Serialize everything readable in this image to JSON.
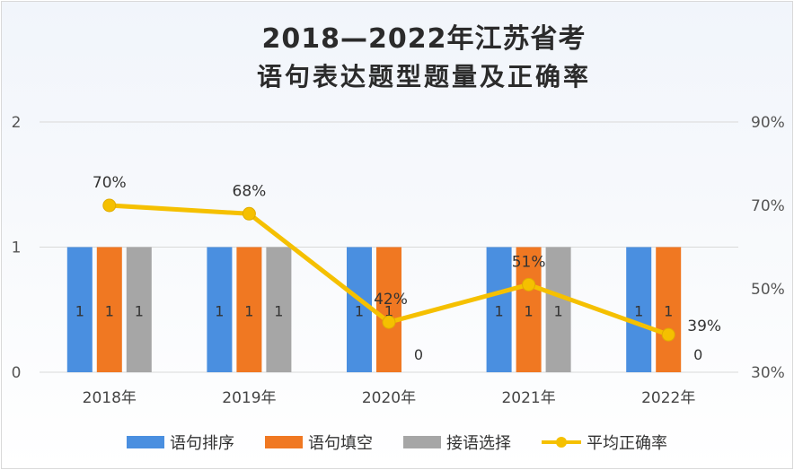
{
  "title_line1": "2018—2022年江苏省考",
  "title_line2": "语句表达题型题量及正确率",
  "chart_data": {
    "type": "bar",
    "categories": [
      "2018年",
      "2019年",
      "2020年",
      "2021年",
      "2022年"
    ],
    "series": [
      {
        "name": "语句排序",
        "values": [
          1,
          1,
          1,
          1,
          1
        ],
        "color": "#4a8fe0"
      },
      {
        "name": "语句填空",
        "values": [
          1,
          1,
          1,
          1,
          1
        ],
        "color": "#f07822"
      },
      {
        "name": "接语选择",
        "values": [
          1,
          1,
          0,
          1,
          0
        ],
        "color": "#a6a6a6"
      }
    ],
    "data_labels": [
      [
        "1",
        "1",
        "1",
        "1",
        "1"
      ],
      [
        "1",
        "1",
        "1",
        "1",
        "1"
      ],
      [
        "1",
        "1",
        "0",
        "1",
        "0"
      ]
    ],
    "line_series": {
      "name": "平均正确率",
      "values": [
        0.7,
        0.68,
        0.42,
        0.51,
        0.39
      ],
      "labels": [
        "70%",
        "68%",
        "42%",
        "51%",
        "39%"
      ],
      "color": "#f5c000"
    },
    "y_left": {
      "min": 0,
      "max": 2,
      "ticks": [
        "0",
        "1",
        "2"
      ]
    },
    "y_right": {
      "min": 0.3,
      "max": 0.9,
      "ticks": [
        "30%",
        "50%",
        "70%",
        "90%"
      ]
    },
    "grid": true,
    "legend_position": "bottom"
  }
}
